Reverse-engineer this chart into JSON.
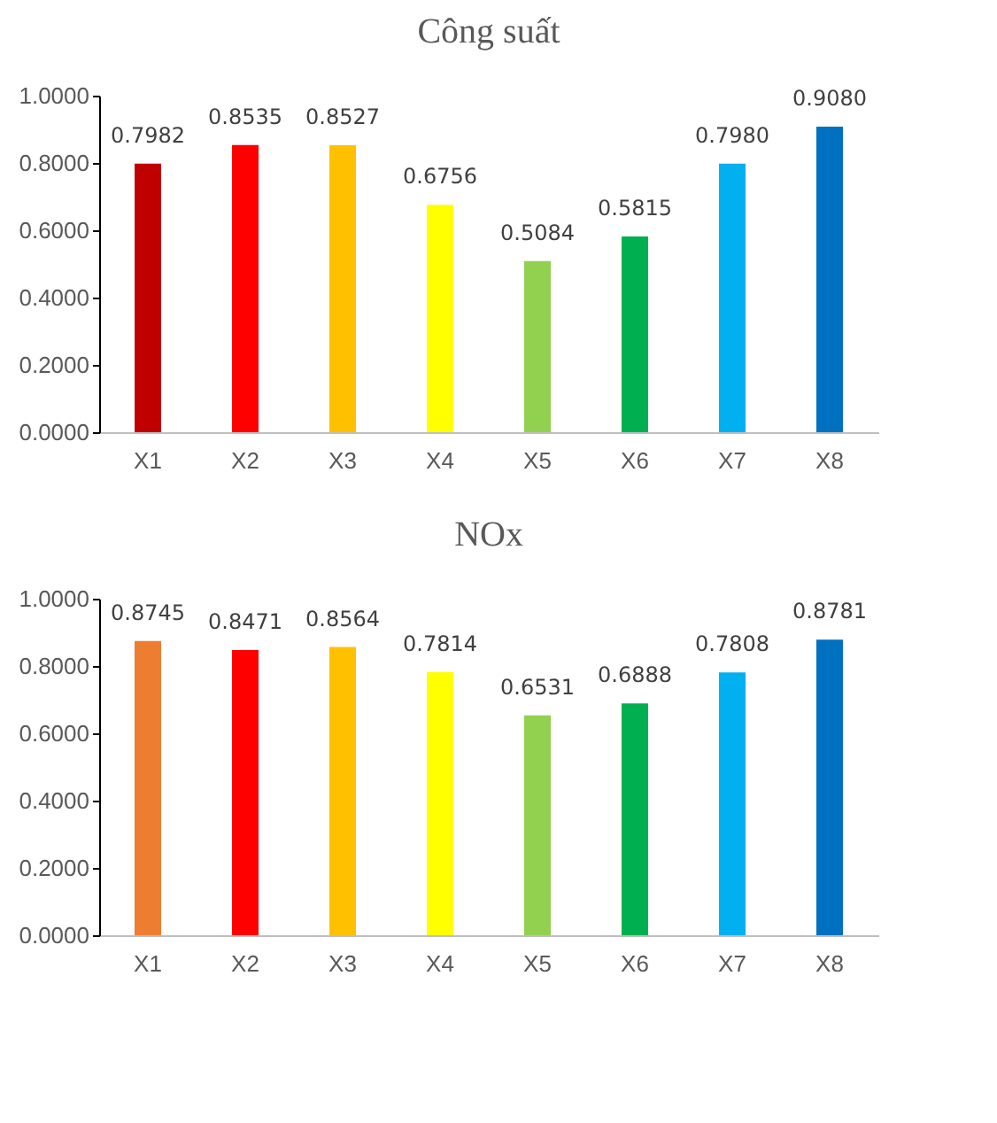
{
  "chart_data": [
    {
      "type": "bar",
      "title": "Công suất",
      "categories": [
        "X1",
        "X2",
        "X3",
        "X4",
        "X5",
        "X6",
        "X7",
        "X8"
      ],
      "values": [
        0.7982,
        0.8535,
        0.8527,
        0.6756,
        0.5084,
        0.5815,
        0.798,
        0.908
      ],
      "value_labels": [
        "0.7982",
        "0.8535",
        "0.8527",
        "0.6756",
        "0.5084",
        "0.5815",
        "0.7980",
        "0.9080"
      ],
      "colors": [
        "#c00000",
        "#ff0000",
        "#ffc000",
        "#ffff00",
        "#92d050",
        "#00b050",
        "#00b0f0",
        "#0070c0"
      ],
      "ylim": [
        0,
        1
      ],
      "yticks": [
        {
          "value": 0,
          "label": "0.0000"
        },
        {
          "value": 0.2,
          "label": "0.2000"
        },
        {
          "value": 0.4,
          "label": "0.4000"
        },
        {
          "value": 0.6,
          "label": "0.6000"
        },
        {
          "value": 0.8,
          "label": "0.8000"
        },
        {
          "value": 1,
          "label": "1.0000"
        }
      ],
      "grid": false
    },
    {
      "type": "bar",
      "title": "NOx",
      "categories": [
        "X1",
        "X2",
        "X3",
        "X4",
        "X5",
        "X6",
        "X7",
        "X8"
      ],
      "values": [
        0.8745,
        0.8471,
        0.8564,
        0.7814,
        0.6531,
        0.6888,
        0.7808,
        0.8781
      ],
      "value_labels": [
        "0.8745",
        "0.8471",
        "0.8564",
        "0.7814",
        "0.6531",
        "0.6888",
        "0.7808",
        "0.8781"
      ],
      "colors": [
        "#ed7d31",
        "#ff0000",
        "#ffc000",
        "#ffff00",
        "#92d050",
        "#00b050",
        "#00b0f0",
        "#0070c0"
      ],
      "ylim": [
        0,
        1
      ],
      "yticks": [
        {
          "value": 0,
          "label": "0.0000"
        },
        {
          "value": 0.2,
          "label": "0.2000"
        },
        {
          "value": 0.4,
          "label": "0.4000"
        },
        {
          "value": 0.6,
          "label": "0.6000"
        },
        {
          "value": 0.8,
          "label": "0.8000"
        },
        {
          "value": 1,
          "label": "1.0000"
        }
      ],
      "grid": false
    }
  ]
}
